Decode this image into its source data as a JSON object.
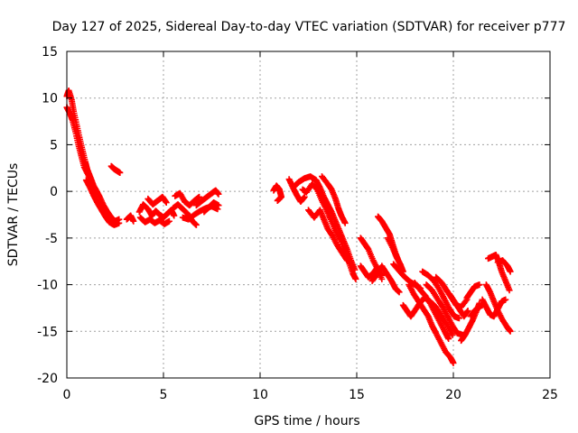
{
  "chart_data": {
    "type": "scatter",
    "title": "Day 127 of 2025, Sidereal Day-to-day VTEC variation (SDTVAR) for receiver p777",
    "xlabel": "GPS time / hours",
    "ylabel": "SDTVAR / TECUs",
    "xlim": [
      0,
      25
    ],
    "ylim": [
      -20,
      15
    ],
    "x_ticks": [
      0,
      5,
      10,
      15,
      20,
      25
    ],
    "y_ticks": [
      -20,
      -15,
      -10,
      -5,
      0,
      5,
      10,
      15
    ],
    "grid": true,
    "legend": "none",
    "marker": "plus",
    "color": "#ff0000",
    "tracks": [
      [
        [
          0.0,
          10.2
        ],
        [
          0.1,
          10.8
        ],
        [
          0.25,
          9.8
        ],
        [
          0.35,
          8.6
        ],
        [
          0.5,
          7.2
        ],
        [
          0.65,
          5.8
        ],
        [
          0.8,
          4.5
        ],
        [
          0.95,
          3.2
        ],
        [
          1.05,
          2.4
        ],
        [
          1.2,
          1.6
        ],
        [
          1.35,
          0.8
        ]
      ],
      [
        [
          0.0,
          9.0
        ],
        [
          0.15,
          8.4
        ],
        [
          0.3,
          7.6
        ],
        [
          0.45,
          6.4
        ],
        [
          0.6,
          5.0
        ],
        [
          0.75,
          3.8
        ],
        [
          0.9,
          2.6
        ],
        [
          1.1,
          1.8
        ],
        [
          1.3,
          0.9
        ],
        [
          1.5,
          0.2
        ],
        [
          1.7,
          -0.6
        ],
        [
          1.9,
          -1.5
        ],
        [
          2.1,
          -2.2
        ],
        [
          2.3,
          -2.8
        ],
        [
          2.5,
          -3.2
        ],
        [
          2.7,
          -3.0
        ]
      ],
      [
        [
          1.0,
          1.2
        ],
        [
          1.2,
          0.4
        ],
        [
          1.4,
          -0.5
        ],
        [
          1.6,
          -1.3
        ],
        [
          1.8,
          -2.0
        ],
        [
          2.0,
          -2.7
        ],
        [
          2.2,
          -3.3
        ],
        [
          2.45,
          -3.6
        ],
        [
          2.7,
          -3.4
        ]
      ],
      [
        [
          2.3,
          2.7
        ],
        [
          2.45,
          2.4
        ],
        [
          2.6,
          2.2
        ],
        [
          2.75,
          2.0
        ]
      ],
      [
        [
          3.1,
          -3.0
        ],
        [
          3.3,
          -2.6
        ],
        [
          3.45,
          -3.2
        ]
      ],
      [
        [
          3.75,
          -2.2
        ],
        [
          3.95,
          -1.4
        ],
        [
          4.2,
          -1.9
        ],
        [
          4.4,
          -2.6
        ],
        [
          4.6,
          -2.1
        ],
        [
          4.8,
          -2.5
        ],
        [
          5.0,
          -2.8
        ],
        [
          5.2,
          -2.4
        ],
        [
          5.4,
          -2.0
        ],
        [
          5.55,
          -2.6
        ]
      ],
      [
        [
          3.8,
          -2.8
        ],
        [
          4.05,
          -3.3
        ],
        [
          4.3,
          -3.0
        ],
        [
          4.55,
          -3.4
        ],
        [
          4.8,
          -3.1
        ],
        [
          5.05,
          -3.5
        ],
        [
          5.3,
          -3.2
        ]
      ],
      [
        [
          4.2,
          -0.8
        ],
        [
          4.45,
          -1.4
        ],
        [
          4.7,
          -1.0
        ],
        [
          4.95,
          -0.6
        ],
        [
          5.15,
          -1.2
        ]
      ],
      [
        [
          5.5,
          -1.8
        ],
        [
          5.75,
          -1.4
        ],
        [
          6.0,
          -1.9
        ],
        [
          6.25,
          -2.4
        ],
        [
          6.5,
          -3.2
        ],
        [
          6.7,
          -3.6
        ]
      ],
      [
        [
          5.6,
          -0.5
        ],
        [
          5.85,
          -0.2
        ],
        [
          6.1,
          -1.1
        ],
        [
          6.35,
          -1.5
        ],
        [
          6.6,
          -1.0
        ],
        [
          6.85,
          -0.6
        ]
      ],
      [
        [
          6.0,
          -2.8
        ],
        [
          6.3,
          -3.0
        ],
        [
          6.6,
          -2.5
        ],
        [
          6.9,
          -2.1
        ],
        [
          7.2,
          -1.8
        ],
        [
          7.5,
          -1.6
        ],
        [
          7.8,
          -1.9
        ]
      ],
      [
        [
          6.7,
          -1.5
        ],
        [
          7.0,
          -1.0
        ],
        [
          7.25,
          -0.6
        ],
        [
          7.5,
          -0.2
        ],
        [
          7.7,
          0.1
        ],
        [
          7.85,
          -0.3
        ]
      ],
      [
        [
          7.1,
          -2.2
        ],
        [
          7.35,
          -1.7
        ],
        [
          7.6,
          -1.2
        ],
        [
          7.85,
          -1.5
        ]
      ],
      [
        [
          10.7,
          0.1
        ],
        [
          10.85,
          0.6
        ],
        [
          11.0,
          0.2
        ],
        [
          11.1,
          -0.6
        ],
        [
          10.9,
          -1.0
        ]
      ],
      [
        [
          11.5,
          1.3
        ],
        [
          11.7,
          0.4
        ],
        [
          11.9,
          -0.4
        ],
        [
          12.1,
          -1.1
        ],
        [
          12.3,
          -0.6
        ]
      ],
      [
        [
          11.8,
          0.6
        ],
        [
          12.0,
          1.0
        ],
        [
          12.3,
          1.4
        ],
        [
          12.6,
          1.6
        ],
        [
          12.9,
          1.2
        ],
        [
          13.1,
          0.4
        ],
        [
          13.3,
          -0.6
        ],
        [
          13.5,
          -1.4
        ],
        [
          13.7,
          -2.2
        ],
        [
          13.9,
          -3.2
        ],
        [
          14.1,
          -4.2
        ],
        [
          14.3,
          -5.2
        ],
        [
          14.5,
          -6.2
        ],
        [
          14.7,
          -7.4
        ],
        [
          14.9,
          -8.4
        ]
      ],
      [
        [
          12.2,
          0.2
        ],
        [
          12.4,
          -0.1
        ],
        [
          12.7,
          0.8
        ],
        [
          12.95,
          0.2
        ],
        [
          13.2,
          -1.0
        ],
        [
          13.45,
          -2.0
        ],
        [
          13.65,
          -3.0
        ],
        [
          13.9,
          -4.2
        ],
        [
          14.15,
          -5.2
        ],
        [
          14.4,
          -6.6
        ],
        [
          14.6,
          -7.6
        ],
        [
          14.8,
          -8.8
        ],
        [
          14.95,
          -9.4
        ]
      ],
      [
        [
          12.5,
          -2.0
        ],
        [
          12.8,
          -2.8
        ],
        [
          13.1,
          -2.0
        ],
        [
          13.3,
          -3.0
        ],
        [
          13.5,
          -4.0
        ],
        [
          13.75,
          -4.8
        ],
        [
          14.0,
          -5.8
        ],
        [
          14.25,
          -6.6
        ],
        [
          14.5,
          -7.4
        ]
      ],
      [
        [
          13.2,
          1.6
        ],
        [
          13.5,
          0.8
        ],
        [
          13.7,
          0.2
        ],
        [
          13.9,
          -0.8
        ],
        [
          14.05,
          -1.8
        ],
        [
          14.2,
          -2.6
        ],
        [
          14.4,
          -3.4
        ]
      ],
      [
        [
          15.2,
          -5.0
        ],
        [
          15.4,
          -5.6
        ],
        [
          15.6,
          -6.2
        ],
        [
          15.85,
          -7.4
        ],
        [
          16.1,
          -8.4
        ],
        [
          16.3,
          -9.0
        ]
      ],
      [
        [
          15.2,
          -8.0
        ],
        [
          15.4,
          -8.6
        ],
        [
          15.6,
          -9.2
        ],
        [
          15.85,
          -8.8
        ],
        [
          16.05,
          -8.2
        ],
        [
          16.3,
          -9.4
        ]
      ],
      [
        [
          15.8,
          -9.6
        ],
        [
          16.0,
          -9.0
        ],
        [
          16.3,
          -8.0
        ],
        [
          16.55,
          -8.8
        ],
        [
          16.8,
          -9.6
        ],
        [
          17.0,
          -10.4
        ],
        [
          17.2,
          -10.8
        ]
      ],
      [
        [
          16.1,
          -2.7
        ],
        [
          16.3,
          -3.2
        ],
        [
          16.5,
          -3.9
        ],
        [
          16.7,
          -4.6
        ],
        [
          16.85,
          -5.6
        ],
        [
          17.0,
          -6.6
        ],
        [
          17.15,
          -7.4
        ]
      ],
      [
        [
          16.6,
          -5.0
        ],
        [
          16.85,
          -6.0
        ],
        [
          17.05,
          -7.0
        ],
        [
          17.25,
          -7.8
        ],
        [
          17.4,
          -8.6
        ]
      ],
      [
        [
          16.9,
          -7.8
        ],
        [
          17.15,
          -8.4
        ],
        [
          17.4,
          -9.0
        ],
        [
          17.7,
          -9.6
        ],
        [
          18.0,
          -10.0
        ],
        [
          18.3,
          -10.4
        ]
      ],
      [
        [
          17.4,
          -12.2
        ],
        [
          17.6,
          -12.8
        ],
        [
          17.8,
          -13.4
        ],
        [
          18.0,
          -12.8
        ],
        [
          18.25,
          -12.0
        ],
        [
          18.5,
          -11.4
        ],
        [
          18.8,
          -11.8
        ],
        [
          19.1,
          -12.4
        ],
        [
          19.4,
          -13.4
        ],
        [
          19.7,
          -14.4
        ],
        [
          19.95,
          -15.4
        ]
      ],
      [
        [
          17.7,
          -10.0
        ],
        [
          17.95,
          -11.0
        ],
        [
          18.2,
          -11.8
        ],
        [
          18.45,
          -12.6
        ],
        [
          18.7,
          -13.4
        ],
        [
          18.9,
          -14.4
        ],
        [
          19.1,
          -15.2
        ],
        [
          19.35,
          -16.2
        ],
        [
          19.6,
          -17.2
        ],
        [
          19.85,
          -17.8
        ],
        [
          20.0,
          -18.4
        ]
      ],
      [
        [
          18.0,
          -9.8
        ],
        [
          18.3,
          -10.6
        ],
        [
          18.55,
          -11.2
        ],
        [
          18.8,
          -12.0
        ],
        [
          19.05,
          -13.0
        ],
        [
          19.3,
          -14.0
        ],
        [
          19.55,
          -15.0
        ],
        [
          19.75,
          -15.8
        ]
      ],
      [
        [
          18.4,
          -8.6
        ],
        [
          18.7,
          -9.0
        ],
        [
          19.0,
          -9.6
        ],
        [
          19.3,
          -10.6
        ],
        [
          19.55,
          -11.6
        ],
        [
          19.8,
          -12.6
        ],
        [
          20.05,
          -13.4
        ],
        [
          20.3,
          -13.6
        ]
      ],
      [
        [
          18.6,
          -10.0
        ],
        [
          18.9,
          -10.6
        ],
        [
          19.2,
          -11.6
        ],
        [
          19.45,
          -12.4
        ],
        [
          19.7,
          -13.4
        ],
        [
          19.95,
          -14.4
        ],
        [
          20.2,
          -15.2
        ],
        [
          20.5,
          -15.4
        ]
      ],
      [
        [
          19.1,
          -9.2
        ],
        [
          19.4,
          -9.8
        ],
        [
          19.65,
          -10.6
        ],
        [
          19.9,
          -11.4
        ],
        [
          20.15,
          -12.2
        ],
        [
          20.4,
          -12.4
        ],
        [
          20.7,
          -11.6
        ]
      ],
      [
        [
          19.8,
          -11.0
        ],
        [
          20.05,
          -11.8
        ],
        [
          20.3,
          -12.6
        ],
        [
          20.55,
          -13.4
        ],
        [
          20.75,
          -12.8
        ]
      ],
      [
        [
          20.4,
          -16.0
        ],
        [
          20.6,
          -15.4
        ],
        [
          20.8,
          -14.6
        ],
        [
          21.0,
          -13.8
        ],
        [
          21.2,
          -12.8
        ],
        [
          21.35,
          -12.0
        ]
      ],
      [
        [
          20.7,
          -11.4
        ],
        [
          20.9,
          -10.8
        ],
        [
          21.1,
          -10.2
        ],
        [
          21.35,
          -10.0
        ]
      ],
      [
        [
          20.9,
          -13.4
        ],
        [
          21.1,
          -12.8
        ],
        [
          21.3,
          -12.4
        ],
        [
          21.5,
          -12.2
        ]
      ],
      [
        [
          21.5,
          -11.6
        ],
        [
          21.7,
          -12.4
        ],
        [
          21.9,
          -13.2
        ],
        [
          22.1,
          -13.4
        ],
        [
          22.3,
          -12.6
        ],
        [
          22.5,
          -11.8
        ],
        [
          22.7,
          -11.6
        ]
      ],
      [
        [
          21.7,
          -10.0
        ],
        [
          21.9,
          -10.8
        ],
        [
          22.1,
          -11.8
        ],
        [
          22.3,
          -12.8
        ],
        [
          22.55,
          -13.8
        ],
        [
          22.8,
          -14.6
        ],
        [
          22.95,
          -15.0
        ]
      ],
      [
        [
          21.8,
          -7.2
        ],
        [
          22.0,
          -7.0
        ],
        [
          22.2,
          -6.8
        ],
        [
          22.35,
          -7.6
        ],
        [
          22.5,
          -8.6
        ],
        [
          22.7,
          -9.6
        ],
        [
          22.9,
          -10.6
        ]
      ],
      [
        [
          22.3,
          -7.6
        ],
        [
          22.55,
          -7.4
        ],
        [
          22.8,
          -8.0
        ],
        [
          22.95,
          -8.6
        ]
      ]
    ]
  }
}
